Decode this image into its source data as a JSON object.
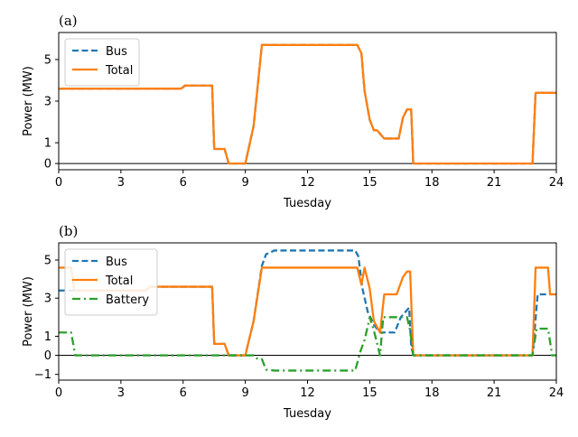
{
  "chart_data": [
    {
      "type": "line",
      "panel_label": "(a)",
      "xlabel": "Tuesday",
      "ylabel": "Power (MW)",
      "xlim": [
        0,
        24
      ],
      "ylim": [
        -0.3,
        6.3
      ],
      "xticks": [
        0,
        3,
        6,
        9,
        12,
        15,
        18,
        21,
        24
      ],
      "yticks": [
        0,
        1,
        3,
        5
      ],
      "legend_position": "upper-left",
      "series": [
        {
          "name": "Bus",
          "style": "dashed",
          "color": "#1f77b4",
          "x": [
            0,
            5.9,
            6.1,
            7.4,
            7.5,
            8.0,
            8.2,
            9.0,
            9.4,
            9.8,
            9.9,
            14.4,
            14.6,
            14.75,
            15.0,
            15.2,
            15.35,
            15.7,
            16.4,
            16.6,
            16.8,
            17.0,
            17.1,
            22.85,
            23.0,
            24
          ],
          "values": [
            3.6,
            3.6,
            3.75,
            3.75,
            0.7,
            0.7,
            0,
            0,
            1.8,
            5.7,
            5.7,
            5.7,
            5.3,
            3.5,
            2.1,
            1.6,
            1.6,
            1.2,
            1.2,
            2.2,
            2.6,
            2.6,
            0,
            0,
            3.4,
            3.4
          ]
        },
        {
          "name": "Total",
          "style": "solid",
          "color": "#ff7f0e",
          "x": [
            0,
            5.9,
            6.1,
            7.4,
            7.5,
            8.0,
            8.2,
            9.0,
            9.4,
            9.8,
            9.9,
            14.4,
            14.6,
            14.75,
            15.0,
            15.2,
            15.35,
            15.7,
            16.4,
            16.6,
            16.8,
            17.0,
            17.1,
            22.85,
            23.0,
            24
          ],
          "values": [
            3.6,
            3.6,
            3.75,
            3.75,
            0.7,
            0.7,
            0,
            0,
            1.8,
            5.7,
            5.7,
            5.7,
            5.3,
            3.5,
            2.1,
            1.6,
            1.6,
            1.2,
            1.2,
            2.2,
            2.6,
            2.6,
            0,
            0,
            3.4,
            3.4
          ]
        }
      ]
    },
    {
      "type": "line",
      "panel_label": "(b)",
      "xlabel": "Tuesday",
      "ylabel": "Power (MW)",
      "xlim": [
        0,
        24
      ],
      "ylim": [
        -1.3,
        5.9
      ],
      "xticks": [
        0,
        3,
        6,
        9,
        12,
        15,
        18,
        21,
        24
      ],
      "yticks": [
        -1,
        0,
        1,
        3,
        5
      ],
      "legend_position": "upper-left",
      "series": [
        {
          "name": "Bus",
          "style": "dashed",
          "color": "#1f77b4",
          "x": [
            0,
            4.2,
            4.4,
            7.4,
            7.5,
            8.0,
            8.2,
            9.0,
            9.4,
            9.8,
            10.0,
            10.4,
            14.3,
            14.45,
            14.65,
            14.9,
            15.2,
            15.5,
            16.2,
            16.5,
            16.9,
            17.0,
            17.1,
            22.85,
            23.1,
            24
          ],
          "values": [
            3.4,
            3.4,
            3.6,
            3.6,
            0.6,
            0.6,
            0,
            0,
            1.8,
            4.7,
            5.3,
            5.5,
            5.5,
            5.2,
            3.5,
            2.3,
            1.6,
            1.2,
            1.2,
            2.0,
            2.5,
            0.5,
            0,
            0,
            3.2,
            3.2
          ]
        },
        {
          "name": "Total",
          "style": "solid",
          "color": "#ff7f0e",
          "x": [
            0,
            0.6,
            0.75,
            4.2,
            4.4,
            7.4,
            7.5,
            8.0,
            8.2,
            9.0,
            9.4,
            9.8,
            9.9,
            14.4,
            14.6,
            14.75,
            15.0,
            15.2,
            15.5,
            15.7,
            16.3,
            16.6,
            16.8,
            16.95,
            17.1,
            22.85,
            23.0,
            23.6,
            23.7,
            24
          ],
          "values": [
            4.6,
            4.6,
            3.4,
            3.4,
            3.6,
            3.6,
            0.6,
            0.6,
            0,
            0,
            1.8,
            4.6,
            4.6,
            4.6,
            3.7,
            4.6,
            3.5,
            1.8,
            1.2,
            3.2,
            3.2,
            4.1,
            4.4,
            4.4,
            0,
            0,
            4.6,
            4.6,
            3.2,
            3.2
          ]
        },
        {
          "name": "Battery",
          "style": "dashdot",
          "color": "#2ca02c",
          "x": [
            0,
            0.6,
            0.8,
            9.4,
            9.6,
            9.8,
            10.0,
            10.4,
            14.3,
            14.55,
            14.75,
            14.9,
            15.0,
            15.2,
            15.5,
            15.65,
            16.4,
            16.8,
            16.95,
            17.1,
            22.85,
            23.05,
            23.6,
            23.8,
            24
          ],
          "values": [
            1.2,
            1.2,
            0,
            0,
            -0.2,
            -0.2,
            -0.75,
            -0.8,
            -0.8,
            0.2,
            0.8,
            1.5,
            2.0,
            1.3,
            0,
            2.0,
            2.0,
            2.0,
            1.3,
            0,
            0,
            1.4,
            1.4,
            0,
            0
          ]
        }
      ]
    }
  ]
}
